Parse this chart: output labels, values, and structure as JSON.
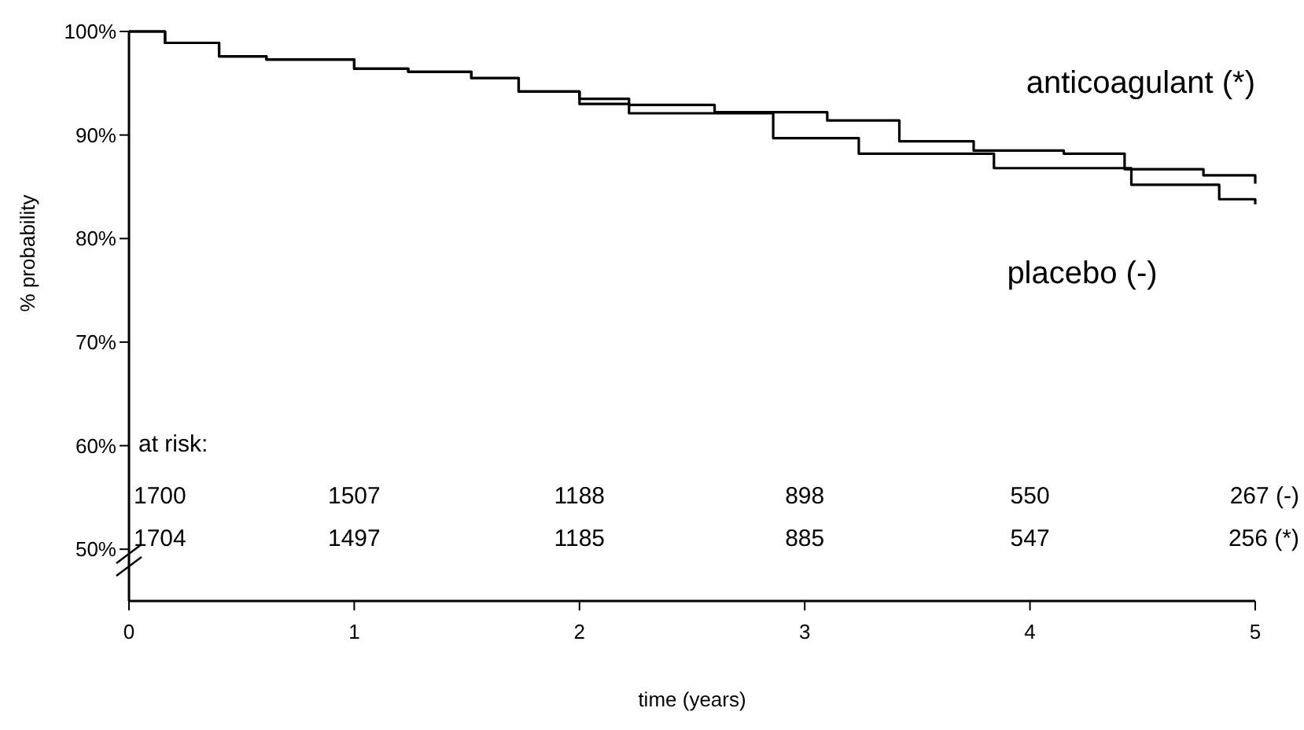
{
  "chart_data": {
    "type": "step",
    "xlabel": "time (years)",
    "ylabel": "% probability",
    "xlim": [
      0,
      5
    ],
    "xticks": [
      0,
      1,
      2,
      3,
      4,
      5
    ],
    "ylim": [
      45,
      100
    ],
    "yticks": [
      {
        "value": 50,
        "label": "50%"
      },
      {
        "value": 60,
        "label": "60%"
      },
      {
        "value": 70,
        "label": "70%"
      },
      {
        "value": 80,
        "label": "80%"
      },
      {
        "value": 90,
        "label": "90%"
      },
      {
        "value": 100,
        "label": "100%"
      }
    ],
    "grid": false,
    "marker": "none",
    "line_style": "solid",
    "series": [
      {
        "name": "anticoagulant (*)",
        "color": "#000000",
        "x": [
          0,
          0.16,
          0.4,
          0.61,
          1.0,
          1.24,
          1.52,
          1.73,
          2.0,
          2.22,
          2.6,
          3.1,
          3.42,
          3.75,
          4.15,
          4.42,
          4.77,
          5.0
        ],
        "values": [
          100,
          98.9,
          97.6,
          97.3,
          96.4,
          96.1,
          95.5,
          94.2,
          93.5,
          92.9,
          92.2,
          91.4,
          89.4,
          88.5,
          88.2,
          86.7,
          86.1,
          85.3
        ]
      },
      {
        "name": "placebo (-)",
        "color": "#000000",
        "x": [
          0,
          0.16,
          0.4,
          0.61,
          1.0,
          1.24,
          1.52,
          1.73,
          2.0,
          2.22,
          2.86,
          3.24,
          3.84,
          4.45,
          4.84,
          5.0
        ],
        "values": [
          100,
          98.9,
          97.6,
          97.3,
          96.4,
          96.1,
          95.5,
          94.2,
          93.0,
          92.1,
          89.7,
          88.2,
          86.8,
          85.2,
          83.8,
          83.3
        ]
      }
    ],
    "annotations": [
      "at risk:",
      "1700",
      "1507",
      "1188",
      "898",
      "550",
      "267 (-)",
      "1704",
      "1497",
      "1185",
      "885",
      "547",
      "256 (*)"
    ]
  }
}
